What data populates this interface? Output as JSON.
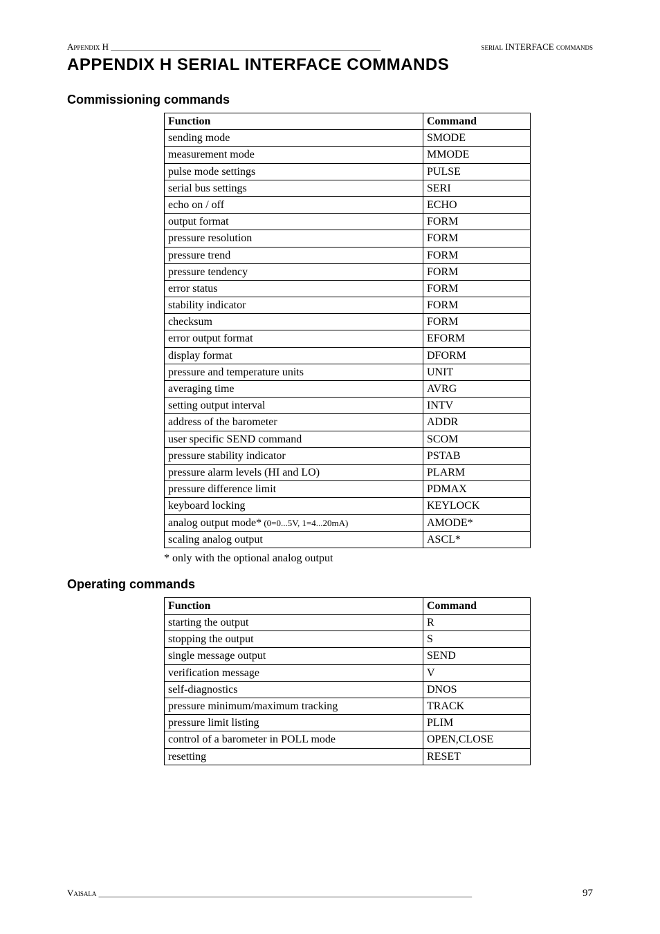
{
  "header": {
    "left_label": "Appendix H",
    "right_label_prefix": "serial ",
    "right_label_main": "INTERFACE",
    "right_label_suffix": " commands",
    "filler": " ____________________________________________________________ "
  },
  "title": "APPENDIX H    SERIAL INTERFACE COMMANDS",
  "section1": {
    "heading": "Commissioning commands",
    "col1": "Function",
    "col2": "Command",
    "rows": [
      {
        "fn": "sending mode",
        "cmd": "SMODE"
      },
      {
        "fn": "measurement mode",
        "cmd": "MMODE"
      },
      {
        "fn": "pulse mode settings",
        "cmd": "PULSE"
      },
      {
        "fn": "serial bus settings",
        "cmd": "SERI"
      },
      {
        "fn": "echo on / off",
        "cmd": "ECHO"
      },
      {
        "fn": "output format",
        "cmd": "FORM"
      },
      {
        "fn": "pressure resolution",
        "cmd": "FORM"
      },
      {
        "fn": "pressure trend",
        "cmd": "FORM"
      },
      {
        "fn": "pressure tendency",
        "cmd": "FORM"
      },
      {
        "fn": "error status",
        "cmd": "FORM"
      },
      {
        "fn": "stability indicator",
        "cmd": "FORM"
      },
      {
        "fn": "checksum",
        "cmd": "FORM"
      },
      {
        "fn": "error output format",
        "cmd": "EFORM"
      },
      {
        "fn": "display format",
        "cmd": "DFORM"
      },
      {
        "fn": "pressure and temperature units",
        "cmd": "UNIT"
      },
      {
        "fn": "averaging time",
        "cmd": "AVRG"
      },
      {
        "fn": "setting output interval",
        "cmd": "INTV"
      },
      {
        "fn": "address of the barometer",
        "cmd": "ADDR"
      },
      {
        "fn": "user specific SEND command",
        "cmd": "SCOM"
      },
      {
        "fn": "pressure stability indicator",
        "cmd": "PSTAB"
      },
      {
        "fn": "pressure alarm levels (HI and LO)",
        "cmd": "PLARM"
      },
      {
        "fn": "pressure difference limit",
        "cmd": "PDMAX"
      },
      {
        "fn": "keyboard locking",
        "cmd": "KEYLOCK"
      },
      {
        "fn": "analog output mode*",
        "fn_sub": " (0=0...5V, 1=4...20mA)",
        "cmd": "AMODE*"
      },
      {
        "fn": "scaling analog output",
        "cmd": "ASCL*"
      }
    ],
    "footnote": "* only with the optional analog output"
  },
  "section2": {
    "heading": "Operating commands",
    "col1": "Function",
    "col2": "Command",
    "rows": [
      {
        "fn": "starting the output",
        "cmd": "R"
      },
      {
        "fn": "stopping the output",
        "cmd": "S"
      },
      {
        "fn": "single message output",
        "cmd": "SEND"
      },
      {
        "fn": "verification message",
        "cmd": "V"
      },
      {
        "fn": "self-diagnostics",
        "cmd": "DNOS"
      },
      {
        "fn": "pressure minimum/maximum tracking",
        "cmd": "TRACK"
      },
      {
        "fn": "pressure limit listing",
        "cmd": "PLIM"
      },
      {
        "fn": "control of a barometer in POLL mode",
        "cmd": "OPEN,CLOSE"
      },
      {
        "fn": "resetting",
        "cmd": "RESET"
      }
    ]
  },
  "footer": {
    "left": "Vaisala",
    "filler": " ___________________________________________________________________________________ ",
    "page": "97"
  }
}
